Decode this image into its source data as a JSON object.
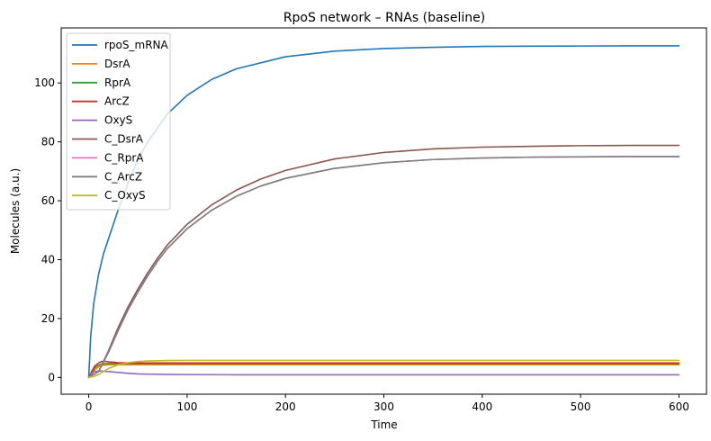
{
  "chart_data": {
    "type": "line",
    "title": "RpoS network – RNAs (baseline)",
    "xlabel": "Time",
    "ylabel": "Molecules (a.u.)",
    "xlim": [
      -28,
      628
    ],
    "ylim": [
      -5.7,
      118.7
    ],
    "xticks": [
      0,
      100,
      200,
      300,
      400,
      500,
      600
    ],
    "yticks": [
      0,
      20,
      40,
      60,
      80,
      100
    ],
    "grid": false,
    "legend_position": "top-left",
    "series": [
      {
        "name": "rpoS_mRNA",
        "color": "#1f77b4",
        "x": [
          0,
          2,
          5,
          10,
          15,
          20,
          30,
          40,
          50,
          60,
          80,
          100,
          125,
          150,
          200,
          250,
          300,
          350,
          400,
          450,
          500,
          550,
          600
        ],
        "y": [
          0,
          14,
          25,
          35,
          42,
          47,
          57,
          66,
          74,
          80,
          89.5,
          95.8,
          101.2,
          104.8,
          108.9,
          110.8,
          111.7,
          112.1,
          112.4,
          112.5,
          112.55,
          112.6,
          112.6
        ]
      },
      {
        "name": "DsrA",
        "color": "#ff7f0e",
        "x": [
          0,
          3,
          6,
          10,
          14,
          20,
          30,
          50,
          100,
          200,
          300,
          400,
          500,
          600
        ],
        "y": [
          0,
          1.2,
          2.5,
          3.6,
          4.1,
          4.3,
          4.3,
          4.3,
          4.3,
          4.3,
          4.3,
          4.3,
          4.3,
          4.3
        ]
      },
      {
        "name": "RprA",
        "color": "#2ca02c",
        "x": [
          0,
          3,
          6,
          10,
          14,
          20,
          30,
          50,
          100,
          200,
          300,
          400,
          500,
          600
        ],
        "y": [
          0,
          1.6,
          3.2,
          4.2,
          4.6,
          4.7,
          4.7,
          4.7,
          4.7,
          4.7,
          4.7,
          4.7,
          4.7,
          4.7
        ]
      },
      {
        "name": "ArcZ",
        "color": "#d62728",
        "x": [
          0,
          3,
          6,
          10,
          13,
          16,
          20,
          30,
          50,
          100,
          200,
          300,
          400,
          500,
          600
        ],
        "y": [
          0,
          2.0,
          3.8,
          4.9,
          5.4,
          5.5,
          5.3,
          5.0,
          4.9,
          4.9,
          4.9,
          4.9,
          4.9,
          4.9,
          4.9
        ]
      },
      {
        "name": "OxyS",
        "color": "#9467bd",
        "x": [
          0,
          2,
          5,
          10,
          20,
          30,
          40,
          50,
          60,
          80,
          100,
          150,
          200,
          300,
          400,
          500,
          600
        ],
        "y": [
          0,
          1.0,
          1.9,
          2.2,
          2.0,
          1.7,
          1.4,
          1.2,
          1.1,
          1.0,
          0.95,
          0.9,
          0.9,
          0.9,
          0.9,
          0.9,
          0.9
        ]
      },
      {
        "name": "C_DsrA",
        "color": "#8c564b",
        "x": [
          0,
          10,
          20,
          30,
          40,
          50,
          60,
          70,
          80,
          100,
          125,
          150,
          175,
          200,
          250,
          300,
          350,
          400,
          450,
          500,
          550,
          600
        ],
        "y": [
          0,
          2,
          9,
          17,
          24,
          30,
          35.5,
          40.5,
          45,
          52,
          58.6,
          63.6,
          67.4,
          70.3,
          74.2,
          76.4,
          77.6,
          78.2,
          78.5,
          78.7,
          78.8,
          78.8
        ]
      },
      {
        "name": "C_RprA",
        "color": "#e377c2",
        "x": [
          0,
          10,
          20,
          30,
          40,
          50,
          60,
          70,
          80,
          100,
          125,
          150,
          175,
          200,
          250,
          300,
          350,
          400,
          450,
          500,
          550,
          600
        ],
        "y": [
          0,
          2,
          8.5,
          16,
          23,
          29,
          34.5,
          39.5,
          43.8,
          50.5,
          56.8,
          61.5,
          65,
          67.6,
          71,
          72.9,
          74,
          74.5,
          74.8,
          74.9,
          75,
          75
        ]
      },
      {
        "name": "C_ArcZ",
        "color": "#7f7f7f",
        "x": [
          0,
          10,
          20,
          30,
          40,
          50,
          60,
          70,
          80,
          100,
          125,
          150,
          175,
          200,
          250,
          300,
          350,
          400,
          450,
          500,
          550,
          600
        ],
        "y": [
          0,
          2,
          8.5,
          16,
          23,
          29,
          34.5,
          39.5,
          43.8,
          50.5,
          56.8,
          61.5,
          65,
          67.6,
          71,
          72.9,
          74,
          74.5,
          74.8,
          74.9,
          75,
          75
        ]
      },
      {
        "name": "C_OxyS",
        "color": "#bcbd22",
        "x": [
          0,
          5,
          10,
          15,
          20,
          30,
          40,
          50,
          60,
          80,
          100,
          150,
          200,
          300,
          400,
          500,
          600
        ],
        "y": [
          0,
          0.3,
          1.0,
          2.0,
          3.0,
          4.3,
          5.0,
          5.4,
          5.6,
          5.75,
          5.8,
          5.8,
          5.8,
          5.8,
          5.8,
          5.8,
          5.8
        ]
      }
    ]
  }
}
